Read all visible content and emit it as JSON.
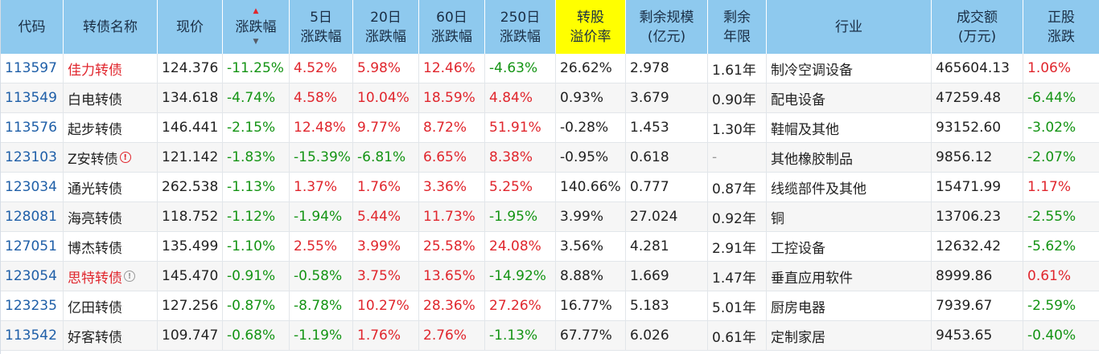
{
  "headers": [
    {
      "l1": "代码",
      "l2": ""
    },
    {
      "l1": "转债名称",
      "l2": ""
    },
    {
      "l1": "现价",
      "l2": ""
    },
    {
      "l1": "涨跌幅",
      "l2": ""
    },
    {
      "l1": "5日",
      "l2": "涨跌幅"
    },
    {
      "l1": "20日",
      "l2": "涨跌幅"
    },
    {
      "l1": "60日",
      "l2": "涨跌幅"
    },
    {
      "l1": "250日",
      "l2": "涨跌幅"
    },
    {
      "l1": "转股",
      "l2": "溢价率"
    },
    {
      "l1": "剩余规模",
      "l2": "(亿元)"
    },
    {
      "l1": "剩余",
      "l2": "年限"
    },
    {
      "l1": "行业",
      "l2": ""
    },
    {
      "l1": "成交额",
      "l2": "(万元)"
    },
    {
      "l1": "正股",
      "l2": "涨跌"
    }
  ],
  "colors": {
    "header_bg": "#8ec9ee",
    "highlight_bg": "#ffff00",
    "up": "#e0262d",
    "down": "#149414",
    "code": "#1f5fa8"
  },
  "rows": [
    {
      "code": "113597",
      "name": "佳力转债",
      "name_color": "red",
      "icon": "",
      "price": "124.376",
      "chg": "-11.25%",
      "d5": "4.52%",
      "d20": "5.98%",
      "d60": "12.46%",
      "d250": "-4.63%",
      "premium": "26.62%",
      "scale": "2.978",
      "years": "1.61年",
      "industry": "制冷空调设备",
      "turnover": "465604.13",
      "stock_chg": "1.06%"
    },
    {
      "code": "113549",
      "name": "白电转债",
      "name_color": "",
      "icon": "",
      "price": "134.618",
      "chg": "-4.74%",
      "d5": "4.58%",
      "d20": "10.04%",
      "d60": "18.59%",
      "d250": "4.84%",
      "premium": "0.93%",
      "scale": "3.679",
      "years": "0.90年",
      "industry": "配电设备",
      "turnover": "47259.48",
      "stock_chg": "-6.44%"
    },
    {
      "code": "113576",
      "name": "起步转债",
      "name_color": "",
      "icon": "",
      "price": "146.441",
      "chg": "-2.15%",
      "d5": "12.48%",
      "d20": "9.77%",
      "d60": "8.72%",
      "d250": "51.91%",
      "premium": "-0.28%",
      "scale": "1.453",
      "years": "1.30年",
      "industry": "鞋帽及其他",
      "turnover": "93152.60",
      "stock_chg": "-3.02%"
    },
    {
      "code": "123103",
      "name": "Z安转债",
      "name_color": "",
      "icon": "warn",
      "icon_glyph": "!",
      "price": "121.142",
      "chg": "-1.83%",
      "d5": "-15.39%",
      "d20": "-6.81%",
      "d60": "6.65%",
      "d250": "8.38%",
      "premium": "-0.95%",
      "scale": "0.618",
      "years": "-",
      "industry": "其他橡胶制品",
      "turnover": "9856.12",
      "stock_chg": "-2.07%"
    },
    {
      "code": "123034",
      "name": "通光转债",
      "name_color": "",
      "icon": "",
      "price": "262.538",
      "chg": "-1.13%",
      "d5": "1.37%",
      "d20": "1.76%",
      "d60": "3.36%",
      "d250": "5.25%",
      "premium": "140.66%",
      "scale": "0.777",
      "years": "0.87年",
      "industry": "线缆部件及其他",
      "turnover": "15471.99",
      "stock_chg": "1.17%"
    },
    {
      "code": "128081",
      "name": "海亮转债",
      "name_color": "",
      "icon": "",
      "price": "118.752",
      "chg": "-1.12%",
      "d5": "-1.94%",
      "d20": "5.44%",
      "d60": "11.73%",
      "d250": "-1.95%",
      "premium": "3.99%",
      "scale": "27.024",
      "years": "0.92年",
      "industry": "铜",
      "turnover": "13706.23",
      "stock_chg": "-2.55%"
    },
    {
      "code": "127051",
      "name": "博杰转债",
      "name_color": "",
      "icon": "",
      "price": "135.499",
      "chg": "-1.10%",
      "d5": "2.55%",
      "d20": "3.99%",
      "d60": "25.58%",
      "d250": "24.08%",
      "premium": "3.56%",
      "scale": "4.281",
      "years": "2.91年",
      "industry": "工控设备",
      "turnover": "12632.42",
      "stock_chg": "-5.62%"
    },
    {
      "code": "123054",
      "name": "思特转债",
      "name_color": "red",
      "icon": "info",
      "icon_glyph": "!",
      "price": "145.470",
      "chg": "-0.91%",
      "d5": "-0.58%",
      "d20": "3.75%",
      "d60": "13.65%",
      "d250": "-14.92%",
      "premium": "8.88%",
      "scale": "1.669",
      "years": "1.47年",
      "industry": "垂直应用软件",
      "turnover": "8999.86",
      "stock_chg": "0.61%"
    },
    {
      "code": "123235",
      "name": "亿田转债",
      "name_color": "",
      "icon": "",
      "price": "127.256",
      "chg": "-0.87%",
      "d5": "-8.78%",
      "d20": "10.27%",
      "d60": "28.36%",
      "d250": "27.26%",
      "premium": "16.77%",
      "scale": "5.183",
      "years": "5.01年",
      "industry": "厨房电器",
      "turnover": "7939.67",
      "stock_chg": "-2.59%"
    },
    {
      "code": "113542",
      "name": "好客转债",
      "name_color": "",
      "icon": "",
      "price": "109.747",
      "chg": "-0.68%",
      "d5": "-1.19%",
      "d20": "1.76%",
      "d60": "2.76%",
      "d250": "-1.13%",
      "premium": "67.77%",
      "scale": "6.026",
      "years": "0.61年",
      "industry": "定制家居",
      "turnover": "9453.65",
      "stock_chg": "-0.40%"
    }
  ]
}
